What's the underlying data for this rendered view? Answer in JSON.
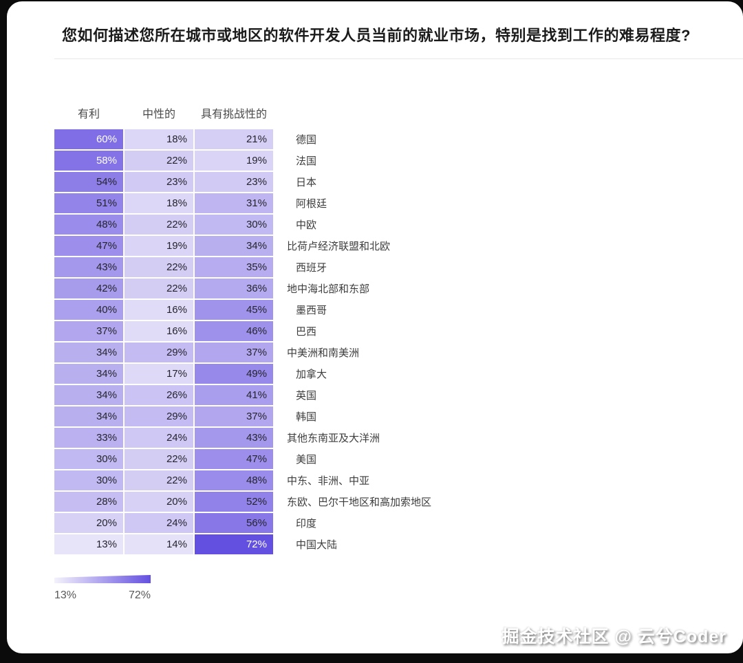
{
  "watermark": "掘金技术社区 @ 云兮Coder",
  "chart_data": {
    "type": "heatmap",
    "title": "您如何描述您所在城市或地区的软件开发人员当前的就业市场，特别是找到工作的难易程度?",
    "columns": [
      "有利",
      "中性的",
      "具有挑战性的"
    ],
    "rows": [
      "德国",
      "法国",
      "日本",
      "阿根廷",
      "中欧",
      "比荷卢经济联盟和北欧",
      "西班牙",
      "地中海北部和东部",
      "墨西哥",
      "巴西",
      "中美洲和南美洲",
      "加拿大",
      "英国",
      "韩国",
      "其他东南亚及大洋洲",
      "美国",
      "中东、非洲、中亚",
      "东欧、巴尔干地区和高加索地区",
      "印度",
      "中国大陆"
    ],
    "series": [
      {
        "name": "有利",
        "values": [
          60,
          58,
          54,
          51,
          48,
          47,
          43,
          42,
          40,
          37,
          34,
          34,
          34,
          34,
          33,
          30,
          30,
          28,
          20,
          13
        ]
      },
      {
        "name": "中性的",
        "values": [
          18,
          22,
          23,
          18,
          22,
          19,
          22,
          22,
          16,
          16,
          29,
          17,
          26,
          29,
          24,
          22,
          22,
          20,
          24,
          14
        ]
      },
      {
        "name": "具有挑战性的",
        "values": [
          21,
          19,
          23,
          31,
          30,
          34,
          35,
          36,
          45,
          46,
          37,
          49,
          41,
          37,
          43,
          47,
          48,
          52,
          56,
          72
        ]
      }
    ],
    "unit": "%",
    "color_scale": {
      "min_value": 13,
      "max_value": 72,
      "min_color": "#E7E3F8",
      "max_color": "#6450E0"
    },
    "legend": {
      "min_label": "13%",
      "max_label": "72%"
    },
    "legend_position": "bottom-left",
    "grid": false
  }
}
